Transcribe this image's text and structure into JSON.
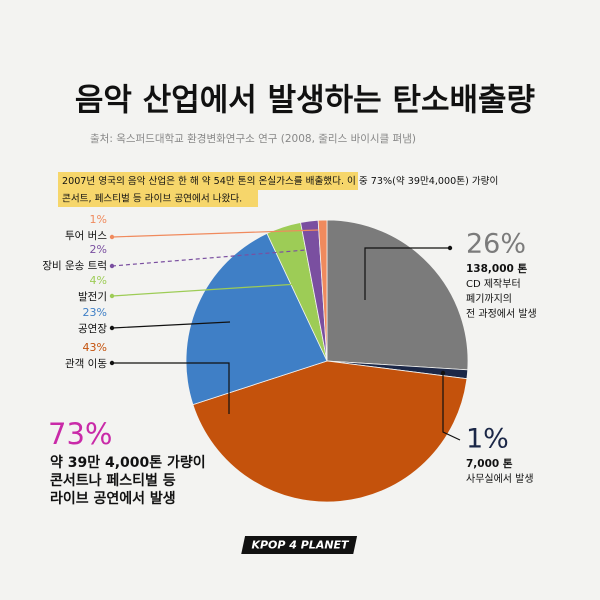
{
  "chart_data": {
    "type": "pie",
    "title": "음악 산업에서 발생하는 탄소배출량",
    "subtitle": "출처: 옥스퍼드대학교 환경변화연구소 연구 (2008, 줄리스 바이시클 펴냄)",
    "note": [
      "2007년 영국의 음악 산업은 한 해 약 54만 톤의 온실가스를 배출했다. 이 중 73%(약 39만4,000톤) 가량이",
      "콘서트, 페스티벌 등 라이브 공연에서 나왔다."
    ],
    "categories": [
      null,
      null,
      "관객 이동",
      "공연장",
      "발전기",
      "장비 운송 트럭",
      "투어 버스"
    ],
    "values": [
      26,
      1,
      43,
      23,
      4,
      2,
      1
    ],
    "value_labels": [
      "26%",
      "1%",
      "43%",
      "23%",
      "4%",
      "2%",
      "1%"
    ],
    "colors": [
      "#7b7b7b",
      "#1b2747",
      "#c4520c",
      "#3f7fc6",
      "#9dcc56",
      "#7a4fa0",
      "#f08a5d"
    ],
    "details": [
      [
        "138,000 톤",
        "CD 제작부터",
        "폐기까지의",
        "전 과정에서 발생"
      ],
      [
        "7,000 톤",
        "사무실에서 발생"
      ],
      null,
      null,
      null,
      null,
      null
    ],
    "callout": {
      "label": "73%",
      "lines": [
        "약 39만 4,000톤 가량이",
        "콘서트나 페스티벌 등",
        "라이브 공연에서 발생"
      ],
      "color": "#c92aa8"
    },
    "logo": "KPOP 4 PLANET"
  }
}
